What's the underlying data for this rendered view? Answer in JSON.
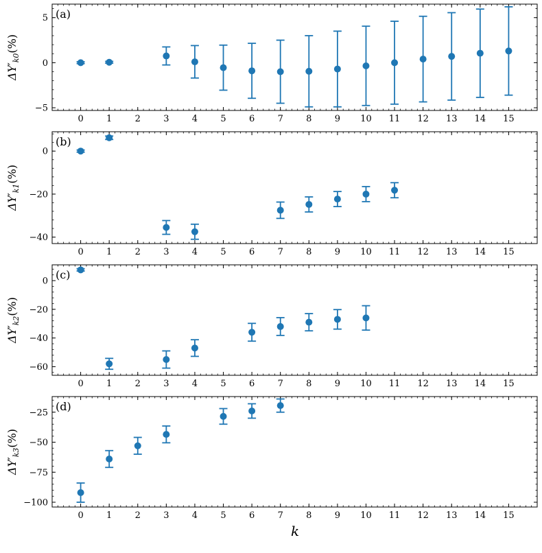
{
  "figure": {
    "xlabel": "k",
    "colors": {
      "marker": "#1f77b4",
      "axes": "#000000"
    }
  },
  "chart_data": [
    {
      "type": "scatter",
      "panel_label": "(a)",
      "ylabel_main": "ΔY′",
      "ylabel_sub": "k0",
      "ylabel_unit": "(%)",
      "x_ticks": [
        0,
        1,
        2,
        3,
        4,
        5,
        6,
        7,
        8,
        9,
        10,
        11,
        12,
        13,
        14,
        15
      ],
      "y_ticks": [
        -5,
        0,
        5
      ],
      "xlim": [
        -1,
        16
      ],
      "ylim": [
        -5.3,
        6.5
      ],
      "points": [
        {
          "x": 0,
          "y": 0.0,
          "err": 0.1
        },
        {
          "x": 1,
          "y": 0.05,
          "err": 0.1
        },
        {
          "x": 3,
          "y": 0.75,
          "err": 1.0
        },
        {
          "x": 4,
          "y": 0.1,
          "err": 1.8
        },
        {
          "x": 5,
          "y": -0.55,
          "err": 2.5
        },
        {
          "x": 6,
          "y": -0.9,
          "err": 3.05
        },
        {
          "x": 7,
          "y": -1.0,
          "err": 3.5
        },
        {
          "x": 8,
          "y": -0.95,
          "err": 3.95
        },
        {
          "x": 9,
          "y": -0.7,
          "err": 4.2
        },
        {
          "x": 10,
          "y": -0.35,
          "err": 4.4
        },
        {
          "x": 11,
          "y": 0.0,
          "err": 4.6
        },
        {
          "x": 12,
          "y": 0.4,
          "err": 4.75
        },
        {
          "x": 13,
          "y": 0.7,
          "err": 4.85
        },
        {
          "x": 14,
          "y": 1.05,
          "err": 4.9
        },
        {
          "x": 15,
          "y": 1.3,
          "err": 4.9
        }
      ]
    },
    {
      "type": "scatter",
      "panel_label": "(b)",
      "ylabel_main": "ΔY′",
      "ylabel_sub": "k1",
      "ylabel_unit": "(%)",
      "x_ticks": [
        0,
        1,
        2,
        3,
        4,
        5,
        6,
        7,
        8,
        9,
        10,
        11,
        12,
        13,
        14,
        15
      ],
      "y_ticks": [
        -40,
        -20,
        0
      ],
      "xlim": [
        -1,
        16
      ],
      "ylim": [
        -43,
        9
      ],
      "points": [
        {
          "x": 0,
          "y": 0.0,
          "err": 0.5
        },
        {
          "x": 1,
          "y": 6.2,
          "err": 0.8
        },
        {
          "x": 3,
          "y": -35.5,
          "err": 3.2
        },
        {
          "x": 4,
          "y": -37.5,
          "err": 3.5
        },
        {
          "x": 7,
          "y": -27.5,
          "err": 3.8
        },
        {
          "x": 8,
          "y": -24.8,
          "err": 3.5
        },
        {
          "x": 9,
          "y": -22.3,
          "err": 3.5
        },
        {
          "x": 10,
          "y": -20.0,
          "err": 3.5
        },
        {
          "x": 11,
          "y": -18.2,
          "err": 3.5
        }
      ]
    },
    {
      "type": "scatter",
      "panel_label": "(c)",
      "ylabel_main": "ΔY′",
      "ylabel_sub": "k2",
      "ylabel_unit": "(%)",
      "x_ticks": [
        0,
        1,
        2,
        3,
        4,
        5,
        6,
        7,
        8,
        9,
        10,
        11,
        12,
        13,
        14,
        15
      ],
      "y_ticks": [
        -60,
        -40,
        -20,
        0
      ],
      "xlim": [
        -1,
        16
      ],
      "ylim": [
        -66,
        11
      ],
      "points": [
        {
          "x": 0,
          "y": 7.5,
          "err": 0.8
        },
        {
          "x": 1,
          "y": -58.0,
          "err": 3.8
        },
        {
          "x": 3,
          "y": -55.0,
          "err": 6.0
        },
        {
          "x": 4,
          "y": -47.0,
          "err": 5.8
        },
        {
          "x": 6,
          "y": -36.0,
          "err": 6.2
        },
        {
          "x": 7,
          "y": -32.0,
          "err": 6.2
        },
        {
          "x": 8,
          "y": -29.0,
          "err": 6.0
        },
        {
          "x": 9,
          "y": -27.0,
          "err": 6.8
        },
        {
          "x": 10,
          "y": -26.0,
          "err": 8.5
        }
      ]
    },
    {
      "type": "scatter",
      "panel_label": "(d)",
      "ylabel_main": "ΔY′",
      "ylabel_sub": "k3",
      "ylabel_unit": "(%)",
      "x_ticks": [
        0,
        1,
        2,
        3,
        4,
        5,
        6,
        7,
        8,
        9,
        10,
        11,
        12,
        13,
        14,
        15
      ],
      "y_ticks": [
        -100,
        -75,
        -50,
        -25
      ],
      "xlim": [
        -1,
        16
      ],
      "ylim": [
        -104,
        -12
      ],
      "points": [
        {
          "x": 0,
          "y": -92.0,
          "err": 8.0
        },
        {
          "x": 1,
          "y": -64.0,
          "err": 7.0
        },
        {
          "x": 2,
          "y": -53.0,
          "err": 7.0
        },
        {
          "x": 3,
          "y": -43.5,
          "err": 7.0
        },
        {
          "x": 5,
          "y": -28.5,
          "err": 6.5
        },
        {
          "x": 6,
          "y": -24.0,
          "err": 6.0
        },
        {
          "x": 7,
          "y": -19.5,
          "err": 5.5
        }
      ]
    }
  ]
}
